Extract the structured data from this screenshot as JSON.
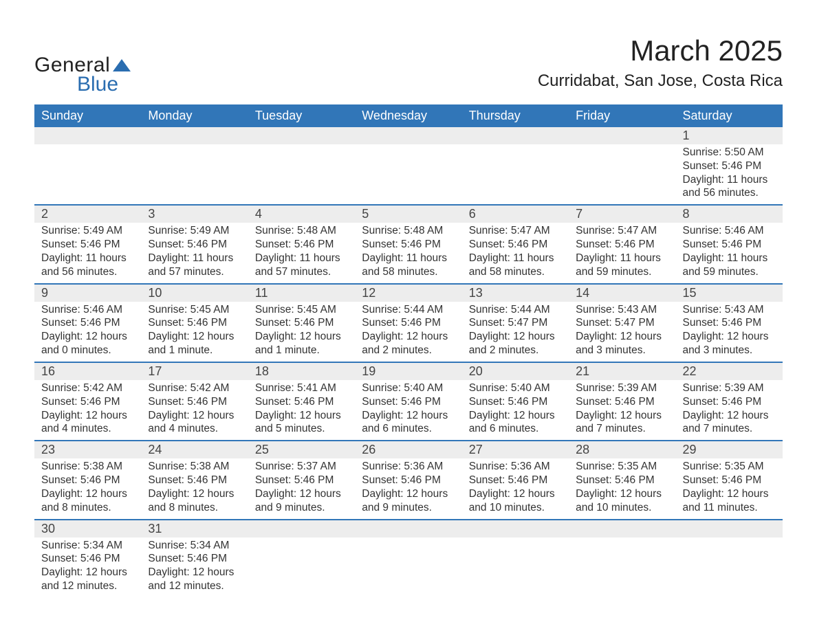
{
  "logo": {
    "word1": "General",
    "word2": "Blue",
    "sail_color": "#2a6db0"
  },
  "title": "March 2025",
  "location": "Curridabat, San Jose, Costa Rica",
  "colors": {
    "header_bg": "#3176b8",
    "header_text": "#ffffff",
    "daynum_bg": "#ededed",
    "row_divider": "#3176b8",
    "text": "#333333",
    "logo_blue": "#2a6db0"
  },
  "fonts": {
    "title_size_pt": 32,
    "location_size_pt": 18,
    "header_size_pt": 14,
    "daynum_size_pt": 14,
    "detail_size_pt": 12
  },
  "day_headers": [
    "Sunday",
    "Monday",
    "Tuesday",
    "Wednesday",
    "Thursday",
    "Friday",
    "Saturday"
  ],
  "weeks": [
    [
      null,
      null,
      null,
      null,
      null,
      null,
      {
        "n": "1",
        "sunrise": "Sunrise: 5:50 AM",
        "sunset": "Sunset: 5:46 PM",
        "daylight": "Daylight: 11 hours and 56 minutes."
      }
    ],
    [
      {
        "n": "2",
        "sunrise": "Sunrise: 5:49 AM",
        "sunset": "Sunset: 5:46 PM",
        "daylight": "Daylight: 11 hours and 56 minutes."
      },
      {
        "n": "3",
        "sunrise": "Sunrise: 5:49 AM",
        "sunset": "Sunset: 5:46 PM",
        "daylight": "Daylight: 11 hours and 57 minutes."
      },
      {
        "n": "4",
        "sunrise": "Sunrise: 5:48 AM",
        "sunset": "Sunset: 5:46 PM",
        "daylight": "Daylight: 11 hours and 57 minutes."
      },
      {
        "n": "5",
        "sunrise": "Sunrise: 5:48 AM",
        "sunset": "Sunset: 5:46 PM",
        "daylight": "Daylight: 11 hours and 58 minutes."
      },
      {
        "n": "6",
        "sunrise": "Sunrise: 5:47 AM",
        "sunset": "Sunset: 5:46 PM",
        "daylight": "Daylight: 11 hours and 58 minutes."
      },
      {
        "n": "7",
        "sunrise": "Sunrise: 5:47 AM",
        "sunset": "Sunset: 5:46 PM",
        "daylight": "Daylight: 11 hours and 59 minutes."
      },
      {
        "n": "8",
        "sunrise": "Sunrise: 5:46 AM",
        "sunset": "Sunset: 5:46 PM",
        "daylight": "Daylight: 11 hours and 59 minutes."
      }
    ],
    [
      {
        "n": "9",
        "sunrise": "Sunrise: 5:46 AM",
        "sunset": "Sunset: 5:46 PM",
        "daylight": "Daylight: 12 hours and 0 minutes."
      },
      {
        "n": "10",
        "sunrise": "Sunrise: 5:45 AM",
        "sunset": "Sunset: 5:46 PM",
        "daylight": "Daylight: 12 hours and 1 minute."
      },
      {
        "n": "11",
        "sunrise": "Sunrise: 5:45 AM",
        "sunset": "Sunset: 5:46 PM",
        "daylight": "Daylight: 12 hours and 1 minute."
      },
      {
        "n": "12",
        "sunrise": "Sunrise: 5:44 AM",
        "sunset": "Sunset: 5:46 PM",
        "daylight": "Daylight: 12 hours and 2 minutes."
      },
      {
        "n": "13",
        "sunrise": "Sunrise: 5:44 AM",
        "sunset": "Sunset: 5:47 PM",
        "daylight": "Daylight: 12 hours and 2 minutes."
      },
      {
        "n": "14",
        "sunrise": "Sunrise: 5:43 AM",
        "sunset": "Sunset: 5:47 PM",
        "daylight": "Daylight: 12 hours and 3 minutes."
      },
      {
        "n": "15",
        "sunrise": "Sunrise: 5:43 AM",
        "sunset": "Sunset: 5:46 PM",
        "daylight": "Daylight: 12 hours and 3 minutes."
      }
    ],
    [
      {
        "n": "16",
        "sunrise": "Sunrise: 5:42 AM",
        "sunset": "Sunset: 5:46 PM",
        "daylight": "Daylight: 12 hours and 4 minutes."
      },
      {
        "n": "17",
        "sunrise": "Sunrise: 5:42 AM",
        "sunset": "Sunset: 5:46 PM",
        "daylight": "Daylight: 12 hours and 4 minutes."
      },
      {
        "n": "18",
        "sunrise": "Sunrise: 5:41 AM",
        "sunset": "Sunset: 5:46 PM",
        "daylight": "Daylight: 12 hours and 5 minutes."
      },
      {
        "n": "19",
        "sunrise": "Sunrise: 5:40 AM",
        "sunset": "Sunset: 5:46 PM",
        "daylight": "Daylight: 12 hours and 6 minutes."
      },
      {
        "n": "20",
        "sunrise": "Sunrise: 5:40 AM",
        "sunset": "Sunset: 5:46 PM",
        "daylight": "Daylight: 12 hours and 6 minutes."
      },
      {
        "n": "21",
        "sunrise": "Sunrise: 5:39 AM",
        "sunset": "Sunset: 5:46 PM",
        "daylight": "Daylight: 12 hours and 7 minutes."
      },
      {
        "n": "22",
        "sunrise": "Sunrise: 5:39 AM",
        "sunset": "Sunset: 5:46 PM",
        "daylight": "Daylight: 12 hours and 7 minutes."
      }
    ],
    [
      {
        "n": "23",
        "sunrise": "Sunrise: 5:38 AM",
        "sunset": "Sunset: 5:46 PM",
        "daylight": "Daylight: 12 hours and 8 minutes."
      },
      {
        "n": "24",
        "sunrise": "Sunrise: 5:38 AM",
        "sunset": "Sunset: 5:46 PM",
        "daylight": "Daylight: 12 hours and 8 minutes."
      },
      {
        "n": "25",
        "sunrise": "Sunrise: 5:37 AM",
        "sunset": "Sunset: 5:46 PM",
        "daylight": "Daylight: 12 hours and 9 minutes."
      },
      {
        "n": "26",
        "sunrise": "Sunrise: 5:36 AM",
        "sunset": "Sunset: 5:46 PM",
        "daylight": "Daylight: 12 hours and 9 minutes."
      },
      {
        "n": "27",
        "sunrise": "Sunrise: 5:36 AM",
        "sunset": "Sunset: 5:46 PM",
        "daylight": "Daylight: 12 hours and 10 minutes."
      },
      {
        "n": "28",
        "sunrise": "Sunrise: 5:35 AM",
        "sunset": "Sunset: 5:46 PM",
        "daylight": "Daylight: 12 hours and 10 minutes."
      },
      {
        "n": "29",
        "sunrise": "Sunrise: 5:35 AM",
        "sunset": "Sunset: 5:46 PM",
        "daylight": "Daylight: 12 hours and 11 minutes."
      }
    ],
    [
      {
        "n": "30",
        "sunrise": "Sunrise: 5:34 AM",
        "sunset": "Sunset: 5:46 PM",
        "daylight": "Daylight: 12 hours and 12 minutes."
      },
      {
        "n": "31",
        "sunrise": "Sunrise: 5:34 AM",
        "sunset": "Sunset: 5:46 PM",
        "daylight": "Daylight: 12 hours and 12 minutes."
      },
      null,
      null,
      null,
      null,
      null
    ]
  ]
}
